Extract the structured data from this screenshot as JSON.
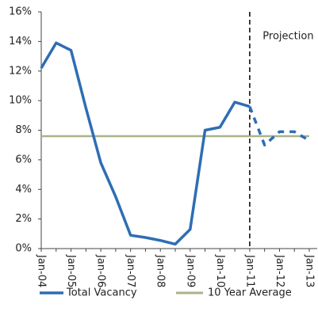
{
  "chart_data": {
    "type": "line",
    "categories": [
      "Jan-04",
      null,
      "Jan-05",
      null,
      "Jan-06",
      null,
      "Jan-07",
      null,
      "Jan-08",
      null,
      "Jan-09",
      null,
      "Jan-10",
      null,
      "Jan-11",
      null,
      "Jan-12",
      null,
      "Jan-13"
    ],
    "series": [
      {
        "name": "Total Vacancy",
        "color": "#2e6db4",
        "values": [
          12.2,
          13.9,
          13.4,
          9.5,
          5.8,
          3.5,
          0.9,
          0.75,
          0.55,
          0.3,
          1.3,
          8.0,
          8.2,
          9.9,
          9.6,
          7.0,
          7.9,
          7.9,
          7.3
        ]
      }
    ],
    "reference_lines": [
      {
        "name": "10 Year Average",
        "value": 7.6,
        "color": "#a9b38a"
      }
    ],
    "annotations": [
      {
        "text": "Projection",
        "x": "Jan-11"
      }
    ],
    "ylim": [
      0,
      16
    ],
    "yticks": [
      {
        "value": 0,
        "label": "0%"
      },
      {
        "value": 2,
        "label": "2%"
      },
      {
        "value": 4,
        "label": "4%"
      },
      {
        "value": 6,
        "label": "6%"
      },
      {
        "value": 8,
        "label": "8%"
      },
      {
        "value": 10,
        "label": "10%"
      },
      {
        "value": 12,
        "label": "12%"
      },
      {
        "value": 14,
        "label": "14%"
      },
      {
        "value": 16,
        "label": "16%"
      }
    ],
    "grid": false
  }
}
